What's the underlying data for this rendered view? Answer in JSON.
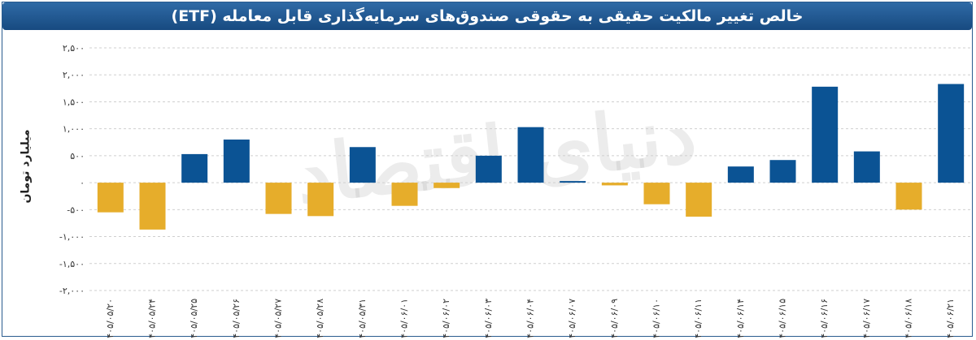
{
  "chart_data": {
    "type": "bar",
    "title": "خالص تغییر مالکیت حقیقی به حقوقی صندوق‌های سرمایه‌گذاری قابل معامله (ETF)",
    "ylabel": "میلیارد تومان",
    "xlabel": "",
    "ylim": [
      -2000,
      2500
    ],
    "yticks": [
      -2000,
      -1500,
      -1000,
      -500,
      0,
      500,
      1000,
      1500,
      2000,
      2500
    ],
    "ytick_labels": [
      "-۲,۰۰۰",
      "-۱,۵۰۰",
      "-۱,۰۰۰",
      "-۵۰۰",
      "۰",
      "۵۰۰",
      "۱,۰۰۰",
      "۱,۵۰۰",
      "۲,۰۰۰",
      "۲,۵۰۰"
    ],
    "grid": true,
    "categories": [
      "۱۴۰۵/۰۵/۲۰",
      "۱۴۰۵/۰۵/۲۴",
      "۱۴۰۵/۰۵/۲۵",
      "۱۴۰۵/۰۵/۲۶",
      "۱۴۰۵/۰۵/۲۷",
      "۱۴۰۵/۰۵/۲۸",
      "۱۴۰۵/۰۵/۳۱",
      "۱۴۰۵/۰۶/۰۱",
      "۱۴۰۵/۰۶/۰۲",
      "۱۴۰۵/۰۶/۰۳",
      "۱۴۰۵/۰۶/۰۴",
      "۱۴۰۵/۰۶/۰۷",
      "۱۴۰۵/۰۶/۰۹",
      "۱۴۰۵/۰۶/۱۰",
      "۱۴۰۵/۰۶/۱۱",
      "۱۴۰۵/۰۶/۱۴",
      "۱۴۰۵/۰۶/۱۵",
      "۱۴۰۵/۰۶/۱۶",
      "۱۴۰۵/۰۶/۱۷",
      "۱۴۰۵/۰۶/۱۸",
      "۱۴۰۵/۰۶/۲۱"
    ],
    "values": [
      -550,
      -870,
      530,
      800,
      -580,
      -620,
      660,
      -430,
      -100,
      500,
      1030,
      30,
      -50,
      -400,
      -630,
      300,
      420,
      1780,
      580,
      -500,
      1830
    ],
    "colors": {
      "positive": "#0b5394",
      "negative": "#e6ad2b",
      "grid": "#cfcfcf"
    }
  },
  "watermark": "دنیای اقتصاد"
}
